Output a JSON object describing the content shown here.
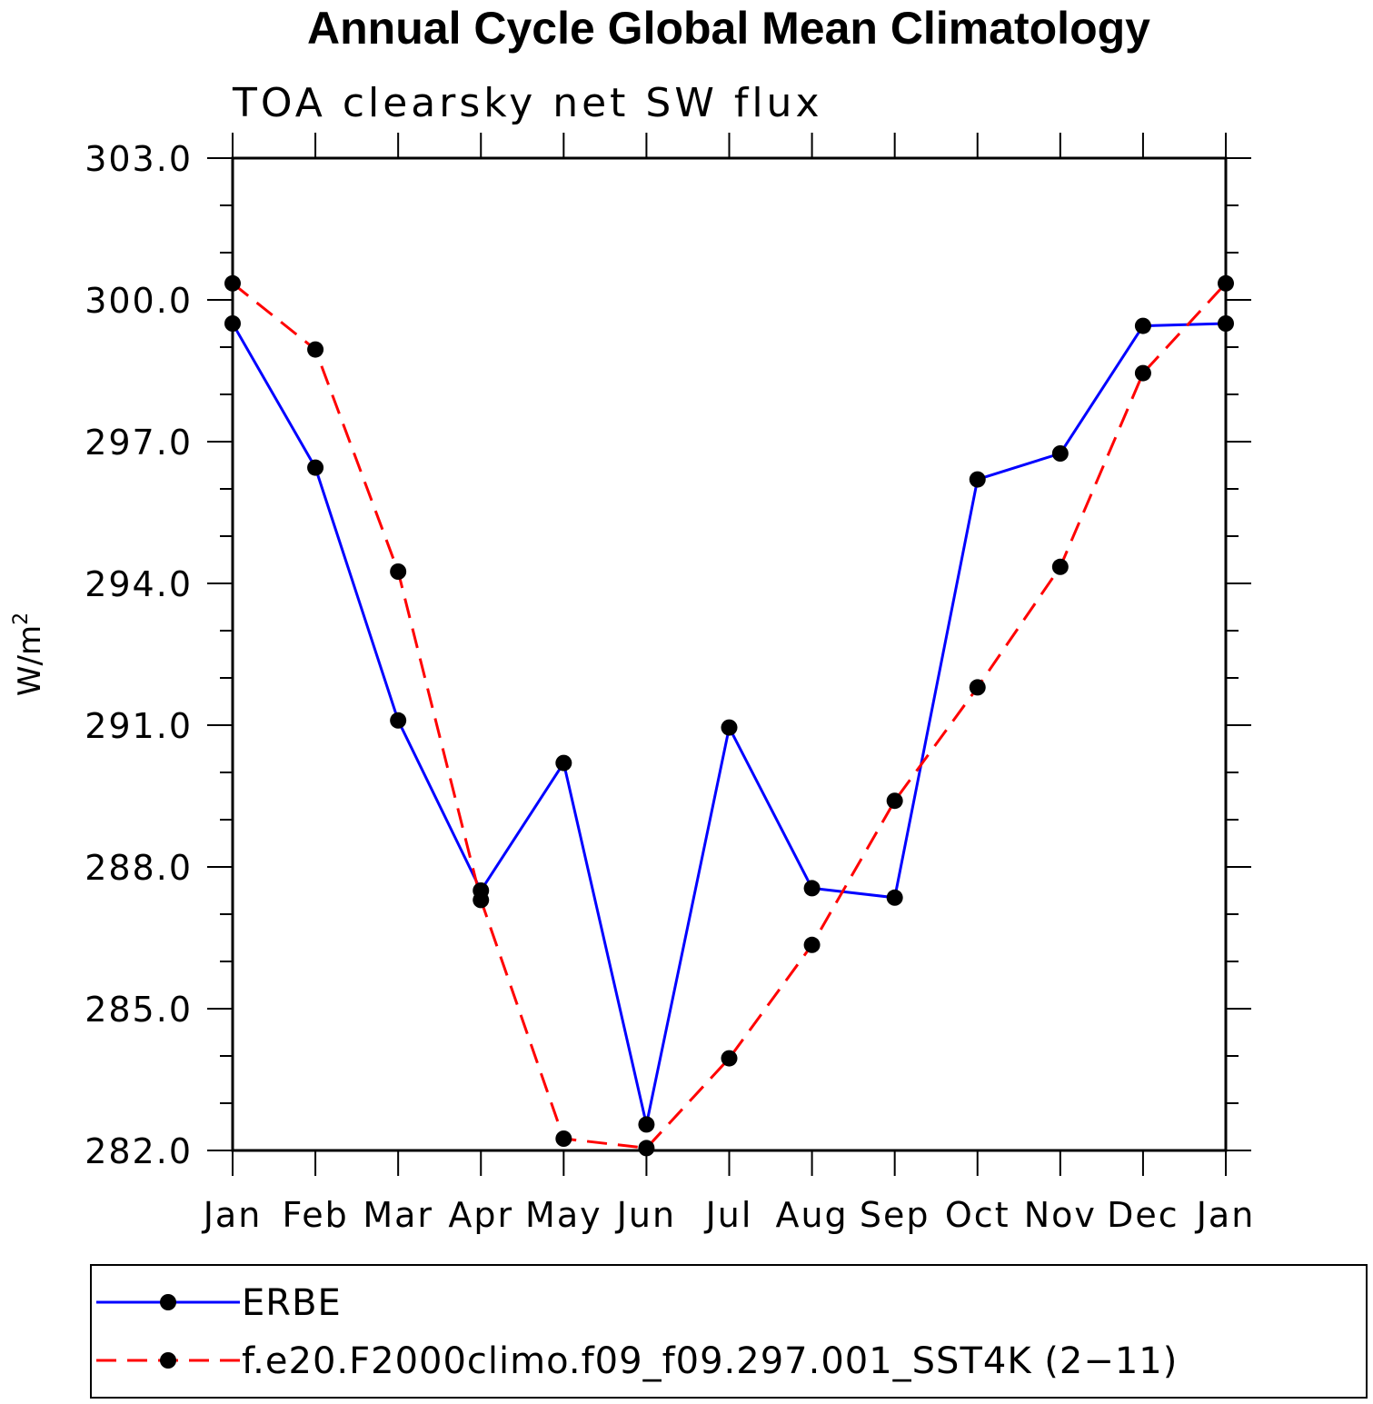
{
  "chart_data": {
    "type": "line",
    "title": "Annual Cycle Global Mean Climatology",
    "subtitle": "TOA clearsky net SW flux",
    "ylabel": "W/m",
    "ylabel_sup": "2",
    "xlabel": "",
    "categories": [
      "Jan",
      "Feb",
      "Mar",
      "Apr",
      "May",
      "Jun",
      "Jul",
      "Aug",
      "Sep",
      "Oct",
      "Nov",
      "Dec",
      "Jan"
    ],
    "ylim": [
      282.0,
      303.0
    ],
    "yticks": [
      "282.0",
      "285.0",
      "288.0",
      "291.0",
      "294.0",
      "297.0",
      "300.0",
      "303.0"
    ],
    "grid": false,
    "legend_position": "bottom",
    "series": [
      {
        "name": "ERBE",
        "color": "#0000ff",
        "dash": "solid",
        "marker": "circle",
        "values": [
          299.5,
          296.45,
          291.1,
          287.5,
          290.2,
          282.55,
          290.95,
          287.55,
          287.35,
          296.2,
          296.75,
          299.45,
          299.5
        ]
      },
      {
        "name": "f.e20.F2000climo.f09_f09.297.001_SST4K (2−11)",
        "color": "#ff0000",
        "dash": "dashed",
        "marker": "circle",
        "values": [
          300.35,
          298.95,
          294.25,
          287.3,
          282.25,
          282.05,
          283.95,
          286.35,
          289.4,
          291.8,
          294.35,
          298.45,
          300.35
        ]
      }
    ]
  }
}
